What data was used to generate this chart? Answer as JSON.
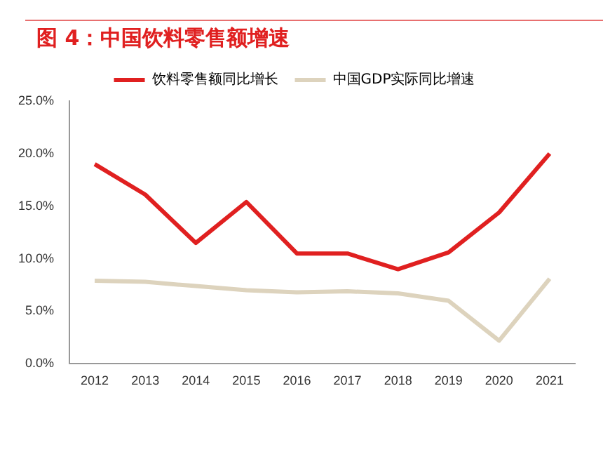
{
  "chart_data": {
    "type": "line",
    "title": "图 4：中国饮料零售额增速",
    "categories": [
      "2012",
      "2013",
      "2014",
      "2015",
      "2016",
      "2017",
      "2018",
      "2019",
      "2020",
      "2021"
    ],
    "series": [
      {
        "name": "饮料零售额同比增长",
        "color": "#e02020",
        "values": [
          19.0,
          16.1,
          11.5,
          15.4,
          10.5,
          10.5,
          9.0,
          10.6,
          14.4,
          20.0
        ]
      },
      {
        "name": "中国GDP实际同比增速",
        "color": "#ddd3bd",
        "values": [
          7.9,
          7.8,
          7.4,
          7.0,
          6.8,
          6.9,
          6.7,
          6.0,
          2.2,
          8.1
        ]
      }
    ],
    "ylim": [
      0,
      25
    ],
    "yticks": [
      {
        "value": 0,
        "label": "0.0%"
      },
      {
        "value": 5,
        "label": "5.0%"
      },
      {
        "value": 10,
        "label": "10.0%"
      },
      {
        "value": 15,
        "label": "15.0%"
      },
      {
        "value": 20,
        "label": "20.0%"
      },
      {
        "value": 25,
        "label": "25.0%"
      }
    ],
    "grid": false,
    "legend": "top",
    "marker": "none",
    "line_style": "solid"
  }
}
